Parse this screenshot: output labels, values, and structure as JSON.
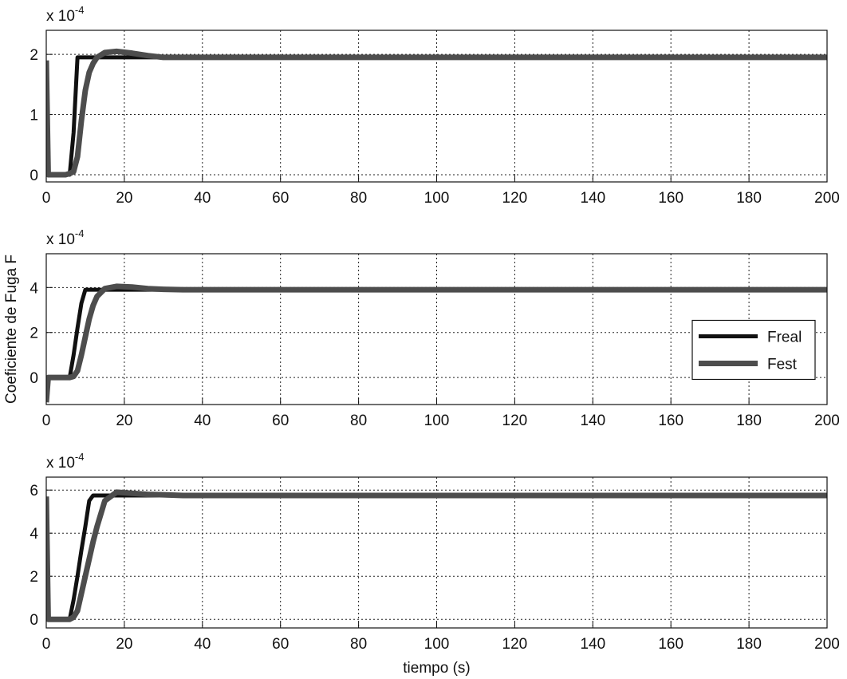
{
  "chart_data": [
    {
      "type": "line",
      "y_multiplier": "x 10",
      "y_exponent": "-4",
      "x": [
        0,
        0.5,
        5,
        6,
        7,
        8,
        9,
        10,
        11,
        12,
        13,
        15,
        18,
        22,
        26,
        30,
        35,
        50,
        100,
        150,
        200
      ],
      "series": [
        {
          "color": "#111111",
          "width": 5,
          "values": [
            0,
            0,
            0,
            0,
            0.7,
            1.95,
            1.95,
            1.95,
            1.95,
            1.95,
            1.95,
            1.95,
            1.95,
            1.95,
            1.95,
            1.95,
            1.95,
            1.95,
            1.95,
            1.95,
            1.95
          ]
        },
        {
          "color": "#4d4d4d",
          "width": 7,
          "values": [
            1.9,
            0,
            0,
            0.02,
            0.05,
            0.3,
            0.9,
            1.4,
            1.7,
            1.85,
            1.95,
            2.03,
            2.05,
            2.02,
            1.98,
            1.95,
            1.95,
            1.95,
            1.95,
            1.95,
            1.95
          ]
        }
      ],
      "xlim": [
        0,
        200
      ],
      "xticks": [
        0,
        20,
        40,
        60,
        80,
        100,
        120,
        140,
        160,
        180,
        200
      ],
      "ylim": [
        -0.12,
        2.4
      ],
      "yticks": [
        0,
        1,
        2
      ],
      "grid": true
    },
    {
      "type": "line",
      "y_multiplier": "x 10",
      "y_exponent": "-4",
      "ylabel": "Coeficiente de Fuga F",
      "x": [
        0,
        0.5,
        5,
        6,
        7,
        8,
        9,
        10,
        11,
        12,
        13,
        15,
        18,
        22,
        26,
        30,
        35,
        50,
        100,
        150,
        200
      ],
      "series": [
        {
          "name": "Freal",
          "color": "#111111",
          "width": 5,
          "values": [
            0,
            0,
            0,
            0,
            1.0,
            2.2,
            3.3,
            3.9,
            3.9,
            3.9,
            3.9,
            3.9,
            3.9,
            3.9,
            3.9,
            3.9,
            3.9,
            3.9,
            3.9,
            3.9,
            3.9
          ]
        },
        {
          "name": "Fest",
          "color": "#4d4d4d",
          "width": 7,
          "values": [
            -1.1,
            0,
            0,
            0,
            0.05,
            0.3,
            1.0,
            1.8,
            2.6,
            3.2,
            3.6,
            3.95,
            4.05,
            4.02,
            3.95,
            3.92,
            3.9,
            3.9,
            3.9,
            3.9,
            3.9
          ]
        }
      ],
      "xlim": [
        0,
        200
      ],
      "xticks": [
        0,
        20,
        40,
        60,
        80,
        100,
        120,
        140,
        160,
        180,
        200
      ],
      "ylim": [
        -1.2,
        5.5
      ],
      "yticks": [
        0,
        2,
        4
      ],
      "grid": true,
      "legend": "right"
    },
    {
      "type": "line",
      "y_multiplier": "x 10",
      "y_exponent": "-4",
      "xlabel": "tiempo (s)",
      "x": [
        0,
        0.5,
        5,
        6,
        7,
        8,
        9,
        10,
        11,
        12,
        13,
        15,
        18,
        22,
        26,
        30,
        35,
        50,
        100,
        150,
        200
      ],
      "series": [
        {
          "color": "#111111",
          "width": 5,
          "values": [
            0,
            0,
            0,
            0,
            0.9,
            2.0,
            3.2,
            4.3,
            5.5,
            5.75,
            5.75,
            5.75,
            5.75,
            5.75,
            5.75,
            5.75,
            5.75,
            5.75,
            5.75,
            5.75,
            5.75
          ]
        },
        {
          "color": "#4d4d4d",
          "width": 7,
          "values": [
            5.7,
            0,
            0,
            0,
            0.1,
            0.4,
            1.2,
            2.0,
            2.8,
            3.6,
            4.3,
            5.5,
            5.9,
            5.85,
            5.8,
            5.78,
            5.75,
            5.75,
            5.75,
            5.75,
            5.75
          ]
        }
      ],
      "xlim": [
        0,
        200
      ],
      "xticks": [
        0,
        20,
        40,
        60,
        80,
        100,
        120,
        140,
        160,
        180,
        200
      ],
      "ylim": [
        -0.4,
        6.6
      ],
      "yticks": [
        0,
        2,
        4,
        6
      ],
      "grid": true
    }
  ]
}
